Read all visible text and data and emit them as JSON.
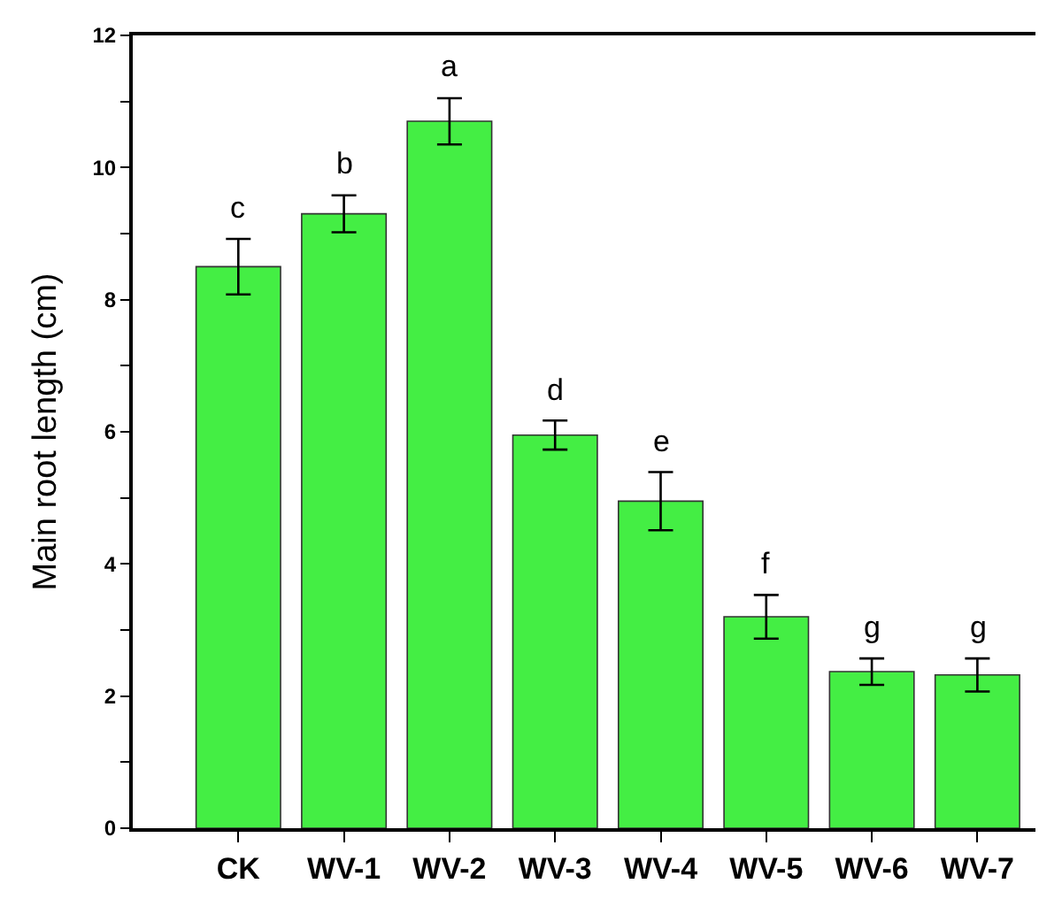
{
  "chart_data": {
    "type": "bar",
    "ylabel": "Main root length (cm)",
    "categories": [
      "CK",
      "WV-1",
      "WV-2",
      "WV-3",
      "WV-4",
      "WV-5",
      "WV-6",
      "WV-7"
    ],
    "values": [
      8.5,
      9.3,
      10.7,
      5.95,
      4.95,
      3.2,
      2.37,
      2.32
    ],
    "errors": [
      0.42,
      0.28,
      0.35,
      0.22,
      0.44,
      0.33,
      0.2,
      0.25
    ],
    "color": "#44ee44",
    "ylim": [
      0,
      12
    ],
    "yticks": [
      0,
      {
        "value": 1,
        "label": null
      },
      2,
      {
        "value": 3,
        "label": null
      },
      4,
      {
        "value": 5,
        "label": null
      },
      6,
      {
        "value": 7,
        "label": null
      },
      8,
      {
        "value": 9,
        "label": null
      },
      10,
      {
        "value": 11,
        "label": null
      },
      12
    ],
    "annotations": [
      {
        "text": "c",
        "x": "CK",
        "y": 8.92
      },
      {
        "text": "b",
        "x": "WV-1",
        "y": 9.58
      },
      {
        "text": "a",
        "x": "WV-2",
        "y": 11.05
      },
      {
        "text": "d",
        "x": "WV-3",
        "y": 6.17
      },
      {
        "text": "e",
        "x": "WV-4",
        "y": 5.39
      },
      {
        "text": "f",
        "x": "WV-5",
        "y": 3.53
      },
      {
        "text": "g",
        "x": "WV-6",
        "y": 2.57
      },
      {
        "text": "g",
        "x": "WV-7",
        "y": 2.57
      }
    ]
  }
}
